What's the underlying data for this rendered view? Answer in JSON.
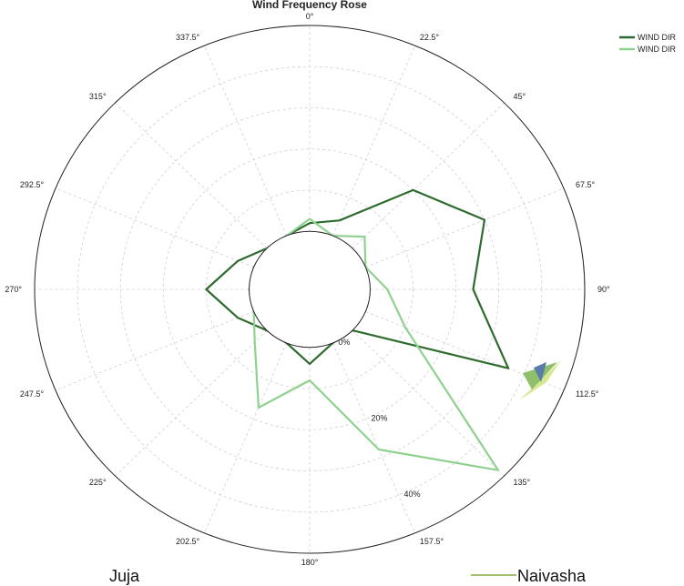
{
  "chart_data": {
    "type": "radar",
    "title": "Wind Frequency Rose",
    "angle_labels": [
      "0°",
      "22.5°",
      "45°",
      "67.5°",
      "90°",
      "112.5°",
      "135°",
      "157.5°",
      "180°",
      "202.5°",
      "225°",
      "247.5°",
      "270°",
      "292.5°",
      "315°",
      "337.5°"
    ],
    "radial_ticks": [
      {
        "value": 0,
        "label": "0%"
      },
      {
        "value": 20,
        "label": "20%"
      },
      {
        "value": 40,
        "label": "40%"
      }
    ],
    "rlim": [
      0,
      50
    ],
    "grid": true,
    "legend_position": "top-right",
    "series": [
      {
        "name": "WIND DIR",
        "color": "#2e6b2e",
        "values": [
          2,
          4,
          20,
          30,
          24,
          36,
          0,
          0,
          4,
          0,
          0,
          4,
          10,
          4,
          0,
          0
        ]
      },
      {
        "name": "WIND DIR",
        "color": "#8fd18f",
        "values": [
          3,
          0,
          4,
          0,
          4,
          10,
          48,
          28,
          8,
          17,
          4,
          0,
          0,
          0,
          0,
          0
        ]
      }
    ]
  },
  "captions": {
    "left": "Juja",
    "right": "Naivasha"
  },
  "colors": {
    "right_caption_line": "#a0c070",
    "logo_light": "#d8e890",
    "logo_mid": "#8fbf6a",
    "logo_dark": "#5a7ca8"
  }
}
